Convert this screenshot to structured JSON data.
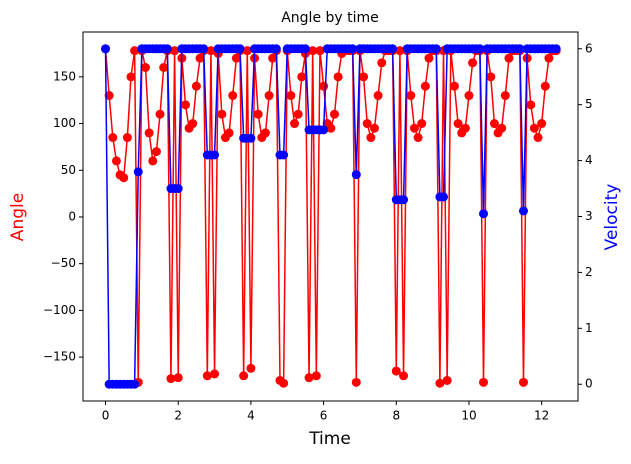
{
  "chart_data": {
    "type": "line",
    "title": "Angle by time",
    "xlabel": "Time",
    "ylabel": "Angle",
    "y2label": "Velocity",
    "x": [
      0,
      0.1,
      0.2,
      0.3,
      0.4,
      0.5,
      0.6,
      0.7,
      0.8,
      0.9,
      1.0,
      1.1,
      1.2,
      1.3,
      1.4,
      1.5,
      1.6,
      1.7,
      1.8,
      1.9,
      2.0,
      2.1,
      2.2,
      2.3,
      2.4,
      2.5,
      2.6,
      2.7,
      2.8,
      2.9,
      3.0,
      3.1,
      3.2,
      3.3,
      3.4,
      3.5,
      3.6,
      3.7,
      3.8,
      3.9,
      4.0,
      4.1,
      4.2,
      4.3,
      4.4,
      4.5,
      4.6,
      4.7,
      4.8,
      4.9,
      5.0,
      5.1,
      5.2,
      5.3,
      5.4,
      5.5,
      5.6,
      5.7,
      5.8,
      5.9,
      6.0,
      6.1,
      6.2,
      6.3,
      6.4,
      6.5,
      6.6,
      6.7,
      6.8,
      6.9,
      7.0,
      7.1,
      7.2,
      7.3,
      7.4,
      7.5,
      7.6,
      7.7,
      7.8,
      7.9,
      8.0,
      8.1,
      8.2,
      8.3,
      8.4,
      8.5,
      8.6,
      8.7,
      8.8,
      8.9,
      9.0,
      9.1,
      9.2,
      9.3,
      9.4,
      9.5,
      9.6,
      9.7,
      9.8,
      9.9,
      10.0,
      10.1,
      10.2,
      10.3,
      10.4,
      10.5,
      10.6,
      10.7,
      10.8,
      10.9,
      11.0,
      11.1,
      11.2,
      11.3,
      11.4,
      11.5,
      11.6,
      11.7,
      11.8,
      11.9,
      12.0,
      12.1,
      12.2,
      12.3,
      12.4
    ],
    "series": [
      {
        "name": "Angle",
        "color": "#ff0000",
        "values": [
          180,
          130,
          85,
          60,
          45,
          42,
          85,
          150,
          178,
          -177,
          178,
          160,
          90,
          60,
          70,
          110,
          160,
          178,
          -173,
          178,
          -172,
          170,
          120,
          95,
          100,
          140,
          170,
          178,
          -170,
          178,
          -168,
          175,
          110,
          85,
          90,
          130,
          170,
          178,
          -170,
          178,
          -162,
          170,
          110,
          85,
          90,
          130,
          170,
          178,
          -175,
          -178,
          178,
          130,
          100,
          110,
          150,
          175,
          -172,
          178,
          -170,
          178,
          140,
          100,
          95,
          110,
          150,
          175,
          178,
          178,
          178,
          -177,
          178,
          150,
          100,
          85,
          95,
          130,
          165,
          178,
          178,
          178,
          -165,
          178,
          -170,
          178,
          130,
          95,
          85,
          100,
          140,
          170,
          178,
          178,
          -178,
          178,
          -175,
          178,
          140,
          100,
          90,
          95,
          130,
          165,
          178,
          178,
          -177,
          178,
          150,
          100,
          90,
          95,
          130,
          170,
          178,
          178,
          178,
          -177,
          170,
          120,
          95,
          85,
          100,
          140,
          170,
          178,
          178
        ]
      },
      {
        "name": "Velocity",
        "color": "#0000ff",
        "axis": "y2",
        "values": [
          6,
          0,
          0,
          0,
          0,
          0,
          0,
          0,
          0,
          3.8,
          6,
          6,
          6,
          6,
          6,
          6,
          6,
          6,
          3.5,
          3.5,
          3.5,
          6,
          6,
          6,
          6,
          6,
          6,
          6,
          4.1,
          4.1,
          4.1,
          6,
          6,
          6,
          6,
          6,
          6,
          6,
          4.4,
          4.4,
          4.4,
          6,
          6,
          6,
          6,
          6,
          6,
          6,
          4.1,
          4.1,
          6,
          6,
          6,
          6,
          6,
          6,
          4.55,
          4.55,
          4.55,
          4.55,
          4.55,
          6,
          6,
          6,
          6,
          6,
          6,
          6,
          6,
          3.75,
          6,
          6,
          6,
          6,
          6,
          6,
          6,
          6,
          6,
          6,
          3.3,
          3.3,
          3.3,
          6,
          6,
          6,
          6,
          6,
          6,
          6,
          6,
          6,
          3.35,
          3.35,
          6,
          6,
          6,
          6,
          6,
          6,
          6,
          6,
          6,
          6,
          3.05,
          6,
          6,
          6,
          6,
          6,
          6,
          6,
          6,
          6,
          6,
          3.1,
          6,
          6,
          6,
          6,
          6,
          6,
          6,
          6,
          6
        ]
      }
    ],
    "xlim": [
      -0.62,
      13.0
    ],
    "xticks": [
      0,
      2,
      4,
      6,
      8,
      10,
      12
    ],
    "ylim": [
      -197,
      198
    ],
    "yticks": [
      {
        "value": -150,
        "label": "−150"
      },
      {
        "value": -100,
        "label": "−100"
      },
      {
        "value": -50,
        "label": "−50"
      },
      0,
      50,
      100,
      150
    ],
    "y2lim": [
      -0.3,
      6.3
    ],
    "y2ticks": [
      0,
      1,
      2,
      3,
      4,
      5,
      6
    ]
  }
}
